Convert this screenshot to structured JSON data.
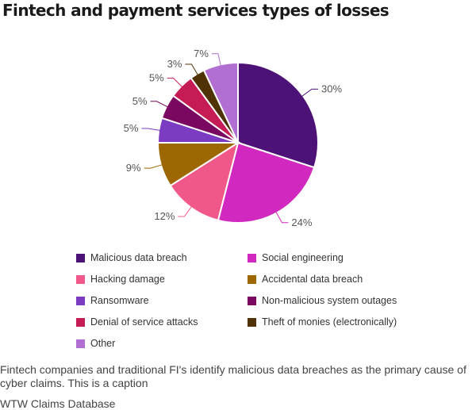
{
  "chart_data": {
    "type": "pie",
    "title": "Fintech and payment services types of losses",
    "slices": [
      {
        "label": "Malicious data breach",
        "value": 30,
        "value_label": "30%",
        "color": "#4d1277"
      },
      {
        "label": "Social engineering",
        "value": 24,
        "value_label": "24%",
        "color": "#d129c0"
      },
      {
        "label": "Hacking damage",
        "value": 12,
        "value_label": "12%",
        "color": "#f1588a"
      },
      {
        "label": "Accidental data breach",
        "value": 9,
        "value_label": "9%",
        "color": "#9d6704"
      },
      {
        "label": "Ransomware",
        "value": 5,
        "value_label": "5%",
        "color": "#7b3bc2"
      },
      {
        "label": "Non-malicious system outages",
        "value": 5,
        "value_label": "5%",
        "color": "#7b0860"
      },
      {
        "label": "Denial of service attacks",
        "value": 5,
        "value_label": "5%",
        "color": "#c51c55"
      },
      {
        "label": "Theft of monies (electronically)",
        "value": 3,
        "value_label": "3%",
        "color": "#4f3307"
      },
      {
        "label": "Other",
        "value": 7,
        "value_label": "7%",
        "color": "#b16fd1"
      }
    ],
    "legend_placement": "bottom"
  },
  "caption": "Fintech companies and traditional FI's identify malicious data breaches as the primary cause of cyber claims. This is a caption",
  "source": "WTW Claims Database"
}
